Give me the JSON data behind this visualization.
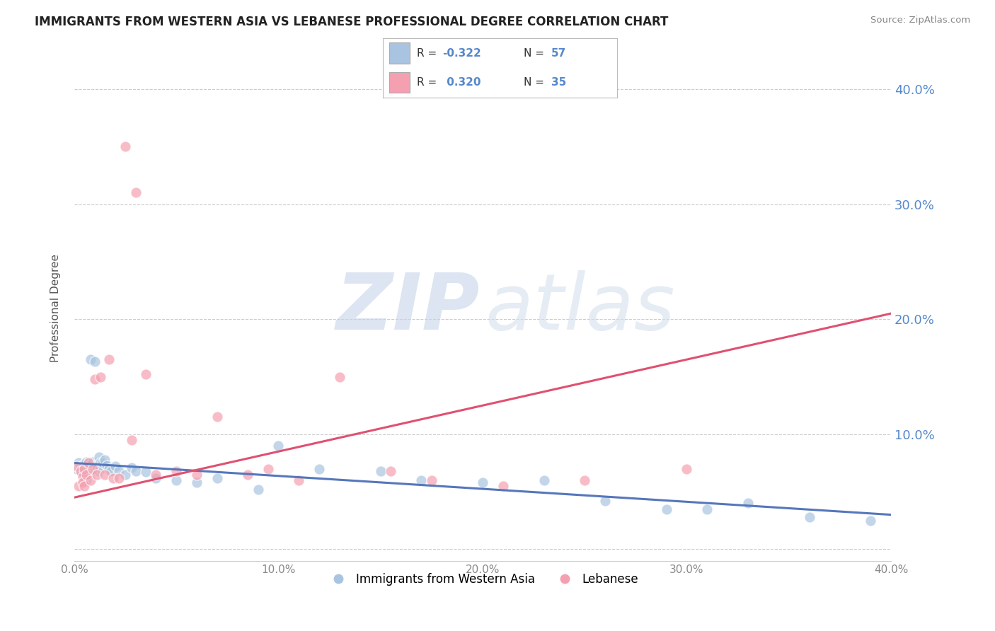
{
  "title": "IMMIGRANTS FROM WESTERN ASIA VS LEBANESE PROFESSIONAL DEGREE CORRELATION CHART",
  "source": "Source: ZipAtlas.com",
  "ylabel": "Professional Degree",
  "legend_blue_R": "-0.322",
  "legend_blue_N": "57",
  "legend_pink_R": "0.320",
  "legend_pink_N": "35",
  "blue_scatter_color": "#a8c4e0",
  "pink_scatter_color": "#f4a0b0",
  "blue_line_color": "#5577bb",
  "pink_line_color": "#e05070",
  "ytick_color": "#5588cc",
  "background_color": "#ffffff",
  "grid_color": "#cccccc",
  "title_color": "#222222",
  "xlim": [
    0.0,
    0.4
  ],
  "ylim": [
    -0.01,
    0.43
  ],
  "yticks": [
    0.0,
    0.1,
    0.2,
    0.3,
    0.4
  ],
  "ytick_labels": [
    "",
    "10.0%",
    "20.0%",
    "30.0%",
    "40.0%"
  ],
  "xticks": [
    0.0,
    0.1,
    0.2,
    0.3,
    0.4
  ],
  "xtick_labels": [
    "0.0%",
    "10.0%",
    "20.0%",
    "30.0%",
    "40.0%"
  ],
  "blue_scatter_x": [
    0.001,
    0.002,
    0.003,
    0.003,
    0.004,
    0.004,
    0.005,
    0.005,
    0.005,
    0.006,
    0.006,
    0.006,
    0.007,
    0.007,
    0.007,
    0.008,
    0.008,
    0.008,
    0.009,
    0.009,
    0.01,
    0.01,
    0.01,
    0.011,
    0.011,
    0.012,
    0.012,
    0.013,
    0.013,
    0.014,
    0.015,
    0.016,
    0.017,
    0.018,
    0.02,
    0.022,
    0.025,
    0.028,
    0.03,
    0.035,
    0.04,
    0.05,
    0.06,
    0.07,
    0.09,
    0.1,
    0.12,
    0.15,
    0.17,
    0.2,
    0.23,
    0.26,
    0.29,
    0.31,
    0.33,
    0.36,
    0.39
  ],
  "blue_scatter_y": [
    0.07,
    0.075,
    0.072,
    0.068,
    0.073,
    0.071,
    0.074,
    0.065,
    0.069,
    0.076,
    0.06,
    0.068,
    0.075,
    0.072,
    0.066,
    0.07,
    0.165,
    0.073,
    0.068,
    0.076,
    0.072,
    0.069,
    0.163,
    0.071,
    0.073,
    0.08,
    0.068,
    0.075,
    0.07,
    0.075,
    0.078,
    0.073,
    0.07,
    0.068,
    0.072,
    0.068,
    0.065,
    0.071,
    0.068,
    0.067,
    0.062,
    0.06,
    0.058,
    0.062,
    0.052,
    0.09,
    0.07,
    0.068,
    0.06,
    0.058,
    0.06,
    0.042,
    0.035,
    0.035,
    0.04,
    0.028,
    0.025
  ],
  "pink_scatter_x": [
    0.001,
    0.002,
    0.003,
    0.004,
    0.004,
    0.005,
    0.005,
    0.006,
    0.007,
    0.008,
    0.009,
    0.01,
    0.011,
    0.013,
    0.015,
    0.017,
    0.019,
    0.022,
    0.025,
    0.028,
    0.03,
    0.035,
    0.04,
    0.05,
    0.06,
    0.07,
    0.085,
    0.095,
    0.11,
    0.13,
    0.155,
    0.175,
    0.21,
    0.25,
    0.3
  ],
  "pink_scatter_y": [
    0.072,
    0.055,
    0.068,
    0.063,
    0.058,
    0.07,
    0.055,
    0.065,
    0.075,
    0.06,
    0.07,
    0.148,
    0.065,
    0.15,
    0.065,
    0.165,
    0.062,
    0.062,
    0.35,
    0.095,
    0.31,
    0.152,
    0.065,
    0.068,
    0.065,
    0.115,
    0.065,
    0.07,
    0.06,
    0.15,
    0.068,
    0.06,
    0.055,
    0.06,
    0.07
  ],
  "blue_trendline_x": [
    0.0,
    0.4
  ],
  "blue_trendline_y": [
    0.075,
    0.03
  ],
  "pink_trendline_x": [
    0.0,
    0.4
  ],
  "pink_trendline_y": [
    0.045,
    0.205
  ]
}
